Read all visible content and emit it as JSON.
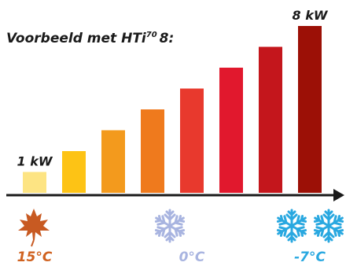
{
  "chart_data": {
    "type": "bar",
    "title": "Voorbeeld met HTi",
    "title_superscript": "70",
    "title_suffix": "8:",
    "values": [
      1,
      2,
      3,
      4,
      5,
      6,
      7,
      8
    ],
    "value_labels": [
      {
        "index": 0,
        "text": "1 kW"
      },
      {
        "index": 7,
        "text": "8 kW"
      }
    ],
    "colors": [
      "#fde483",
      "#fdc315",
      "#f39a1d",
      "#ef7a1d",
      "#e8392d",
      "#e1182d",
      "#c4161c",
      "#9c1006"
    ],
    "axis_labels": [
      {
        "text": "15°C",
        "color": "#d06220",
        "icon": "maple-leaf-icon",
        "at_bar": 0
      },
      {
        "text": "0°C",
        "color": "#a8b4e0",
        "icon": "snowflake-icon",
        "at_bar": 4
      },
      {
        "text": "-7°C",
        "color": "#29a8e0",
        "icon": "two-snowflakes-icon",
        "at_bar": 7
      }
    ],
    "legend": "none",
    "grid": false
  }
}
